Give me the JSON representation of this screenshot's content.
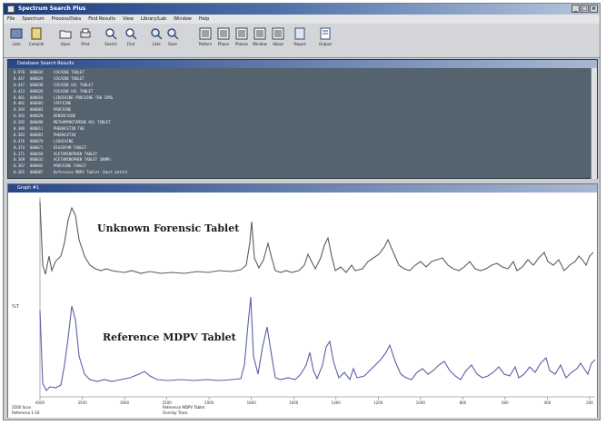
{
  "window": {
    "title": "Spectrum Search Plus",
    "controls": [
      "_",
      "□",
      "×"
    ]
  },
  "menu": [
    "File",
    "Spectrum",
    "Process/Data",
    "Find Results",
    "View",
    "Library/Lab",
    "Window",
    "Help"
  ],
  "toolbar": [
    {
      "label": "Lists",
      "icon": "list-icon"
    },
    {
      "label": "Compile",
      "icon": "compile-icon"
    },
    {
      "label": "Open",
      "icon": "folder-icon"
    },
    {
      "label": "Print",
      "icon": "printer-icon"
    },
    {
      "label": "Search",
      "icon": "search-icon"
    },
    {
      "label": "Find",
      "icon": "find-icon"
    },
    {
      "label": "Lists",
      "icon": "magnify-icon"
    },
    {
      "label": "Save",
      "icon": "save-icon"
    },
    {
      "label": "Pattern",
      "icon": "pattern-icon"
    },
    {
      "label": "Phase",
      "icon": "phase-icon"
    },
    {
      "label": "Phases",
      "icon": "phases-icon"
    },
    {
      "label": "Window",
      "icon": "window-icon"
    },
    {
      "label": "About",
      "icon": "about-icon"
    },
    {
      "label": "Report",
      "icon": "report-icon"
    },
    {
      "label": "Output",
      "icon": "output-icon"
    }
  ],
  "results_panel": {
    "title": "Database Search Results",
    "rows": [
      {
        "num": "0.976",
        "id": "000034",
        "name": "COCAINE TABLET"
      },
      {
        "num": "0.447",
        "id": "000029",
        "name": "COCAINE TABLET"
      },
      {
        "num": "0.447",
        "id": "000038",
        "name": "COCAINE HCL TABLET"
      },
      {
        "num": "0.413",
        "id": "000028",
        "name": "COCAINE HCL TABLET"
      },
      {
        "num": "0.401",
        "id": "000018",
        "name": "LIDOCAINE PROCAINE TAB 35MG"
      },
      {
        "num": "0.401",
        "id": "000083",
        "name": "CAFFEINE"
      },
      {
        "num": "0.394",
        "id": "000083",
        "name": "PROCAINE"
      },
      {
        "num": "0.393",
        "id": "000028",
        "name": "BENZOCAINE"
      },
      {
        "num": "0.392",
        "id": "000098",
        "name": "METHAMPHETAMINE HCL TABLET"
      },
      {
        "num": "0.389",
        "id": "000011",
        "name": "PHENACETIN TAB"
      },
      {
        "num": "0.383",
        "id": "000081",
        "name": "PHENACETIN"
      },
      {
        "num": "0.376",
        "id": "000078",
        "name": "LIDOCAINE"
      },
      {
        "num": "0.374",
        "id": "000071",
        "name": "DIAZEPAM TABLET"
      },
      {
        "num": "0.371",
        "id": "000058",
        "name": "ACETAMINOPHEN TABLET"
      },
      {
        "num": "0.369",
        "id": "000033",
        "name": "ACETAMINOPHEN TABLET 500MG"
      },
      {
        "num": "0.367",
        "id": "000092",
        "name": "PROCAINE TABLET"
      },
      {
        "num": "0.365",
        "id": "000087",
        "name": "Reference MDPV Tablet (best match)"
      }
    ]
  },
  "graph_window": {
    "title": "Graph #1",
    "ylabel": "%T",
    "trace_top_label": "Unknown Forensic Tablet",
    "trace_bottom_label": "Reference MDPV Tablet",
    "x_ticks": [
      "4000",
      "3500",
      "3000",
      "2500",
      "2000",
      "1800",
      "1600",
      "1400",
      "1200",
      "1000",
      "800",
      "600",
      "400",
      "200"
    ],
    "footer_left": [
      "3500 Scan",
      "Reference 1-16"
    ],
    "footer_center": [
      "Reference MDPV Tablet",
      "Overlay Trace"
    ],
    "colors": {
      "top_trace": "#5b5d62",
      "bottom_trace": "#5a5fa8"
    }
  }
}
